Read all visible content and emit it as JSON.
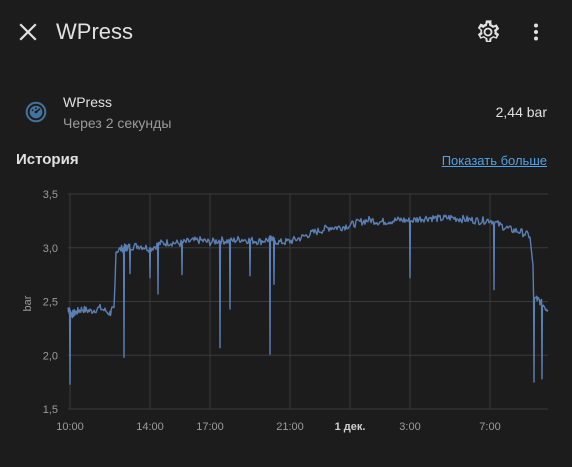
{
  "header": {
    "title": "WPress",
    "close_icon": "close-icon",
    "settings_icon": "gear-icon",
    "more_icon": "more-vert-icon"
  },
  "entity": {
    "icon": "gauge-icon",
    "name": "WPress",
    "last_changed": "Через 2 секунды",
    "state": "2,44 bar"
  },
  "history": {
    "title": "История",
    "show_more": "Показать больше"
  },
  "colors": {
    "background": "#1c1c1c",
    "series": "#5b7fb3",
    "link": "#4fa3e5",
    "grid": "#3a3a3a"
  },
  "chart_data": {
    "type": "line",
    "ylabel": "bar",
    "ylim": [
      1.5,
      3.5
    ],
    "yticks": [
      "1,5",
      "2,0",
      "2,5",
      "3,0",
      "3,5"
    ],
    "xticks": [
      "10:00",
      "14:00",
      "17:00",
      "21:00",
      "1 дек.",
      "3:00",
      "7:00"
    ],
    "xlim_hours": [
      9.9,
      33.9
    ],
    "series": [
      {
        "name": "WPress",
        "x_hours": [
          9.9,
          10.0,
          10.1,
          10.3,
          10.6,
          11.0,
          11.5,
          12.0,
          12.2,
          12.3,
          12.7,
          12.8,
          13.0,
          13.5,
          14.0,
          14.5,
          15.0,
          15.5,
          16.0,
          16.5,
          17.0,
          17.5,
          18.0,
          18.5,
          19.0,
          19.5,
          20.0,
          20.5,
          21.0,
          21.5,
          22.0,
          22.5,
          23.0,
          23.5,
          24.0,
          24.5,
          25.0,
          25.5,
          26.0,
          26.5,
          27.0,
          27.5,
          28.0,
          28.5,
          29.0,
          29.5,
          30.0,
          30.5,
          31.0,
          31.5,
          32.0,
          32.5,
          33.0,
          33.3,
          33.5,
          33.9
        ],
        "values": [
          2.44,
          2.4,
          2.38,
          2.4,
          2.43,
          2.41,
          2.44,
          2.39,
          2.44,
          2.97,
          3.0,
          3.0,
          3.01,
          3.02,
          2.99,
          3.04,
          3.05,
          3.04,
          3.06,
          3.07,
          3.05,
          3.07,
          3.06,
          3.08,
          3.07,
          3.06,
          3.08,
          3.05,
          3.06,
          3.09,
          3.13,
          3.16,
          3.19,
          3.19,
          3.21,
          3.24,
          3.26,
          3.24,
          3.25,
          3.26,
          3.25,
          3.27,
          3.28,
          3.27,
          3.28,
          3.27,
          3.26,
          3.25,
          3.26,
          3.21,
          3.17,
          3.15,
          3.11,
          2.53,
          2.5,
          2.42
        ]
      }
    ],
    "dips": [
      {
        "x_hours": 10.0,
        "value": 1.73
      },
      {
        "x_hours": 12.7,
        "value": 1.98
      },
      {
        "x_hours": 13.0,
        "value": 2.76
      },
      {
        "x_hours": 14.0,
        "value": 2.72
      },
      {
        "x_hours": 14.4,
        "value": 2.57
      },
      {
        "x_hours": 15.6,
        "value": 2.75
      },
      {
        "x_hours": 17.5,
        "value": 2.07
      },
      {
        "x_hours": 18.0,
        "value": 2.43
      },
      {
        "x_hours": 19.0,
        "value": 2.74
      },
      {
        "x_hours": 20.0,
        "value": 2.01
      },
      {
        "x_hours": 20.2,
        "value": 2.66
      },
      {
        "x_hours": 27.0,
        "value": 2.72
      },
      {
        "x_hours": 31.2,
        "value": 2.61
      },
      {
        "x_hours": 33.2,
        "value": 1.75
      },
      {
        "x_hours": 33.6,
        "value": 1.78
      }
    ],
    "grid": true,
    "legend": "none"
  }
}
